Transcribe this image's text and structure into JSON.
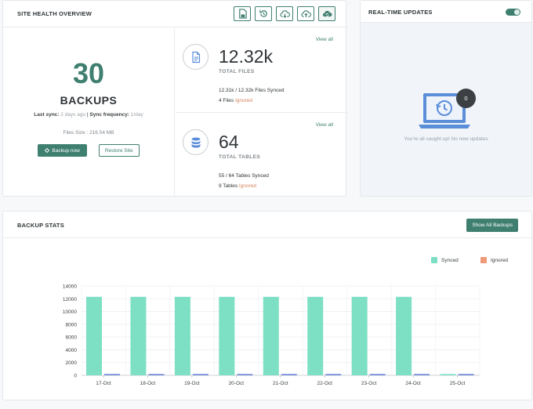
{
  "health": {
    "title": "SITE HEALTH OVERVIEW",
    "toolbar": [
      "file-export-icon",
      "restore-icon",
      "cloud-download-icon",
      "cloud-upload-icon",
      "cloud-sync-icon"
    ],
    "backups_count": "30",
    "backups_label": "BACKUPS",
    "last_sync_label": "Last sync:",
    "last_sync_value": "2 days ago",
    "separator": "|",
    "sync_freq_label": "Sync frequency:",
    "sync_freq_value": "1/day",
    "files_size": "Files Size : 216.54 MB",
    "backup_now_label": "Backup now",
    "restore_label": "Restore Site",
    "files": {
      "view_all": "View all",
      "count": "12.32k",
      "label": "TOTAL FILES",
      "synced_line": "12.31k / 12.32k",
      "synced_suffix": "Files Synced",
      "ignored_count": "4 Files",
      "ignored_word": "Ignored"
    },
    "tables": {
      "view_all": "View all",
      "count": "64",
      "label": "TOTAL TABLES",
      "synced_line": "55 / 64",
      "synced_suffix": "Tables Synced",
      "ignored_count": "9 Tables",
      "ignored_word": "Ignored"
    }
  },
  "updates": {
    "title": "REAL-TIME UPDATES",
    "toggle_on": true,
    "badge": "0",
    "empty_message": "You're all caught up! No new updates"
  },
  "stats": {
    "title": "BACKUP STATS",
    "show_all_label": "Show All Backups",
    "legend": [
      {
        "name": "Synced",
        "color": "#7ddfc3"
      },
      {
        "name": "Ignored",
        "color": "#ef9a78"
      }
    ]
  },
  "chart_data": {
    "type": "bar",
    "categories": [
      "17-Oct",
      "18-Oct",
      "19-Oct",
      "20-Oct",
      "21-Oct",
      "22-Oct",
      "23-Oct",
      "24-Oct",
      "25-Oct"
    ],
    "series": [
      {
        "name": "Synced",
        "color": "#7ddfc3",
        "values": [
          12300,
          12300,
          12300,
          12300,
          12300,
          12300,
          12300,
          12300,
          200
        ]
      },
      {
        "name": "",
        "color": "#6b86d6",
        "values": [
          200,
          200,
          200,
          200,
          200,
          200,
          200,
          200,
          200
        ]
      },
      {
        "name": "Ignored",
        "color": "#ef9a78",
        "values": [
          0,
          0,
          0,
          0,
          0,
          0,
          0,
          0,
          0
        ]
      }
    ],
    "yticks": [
      0,
      2000,
      4000,
      6000,
      8000,
      10000,
      12000,
      14000
    ],
    "ylim": [
      0,
      14000
    ],
    "grid": true,
    "legend": "top-right"
  }
}
